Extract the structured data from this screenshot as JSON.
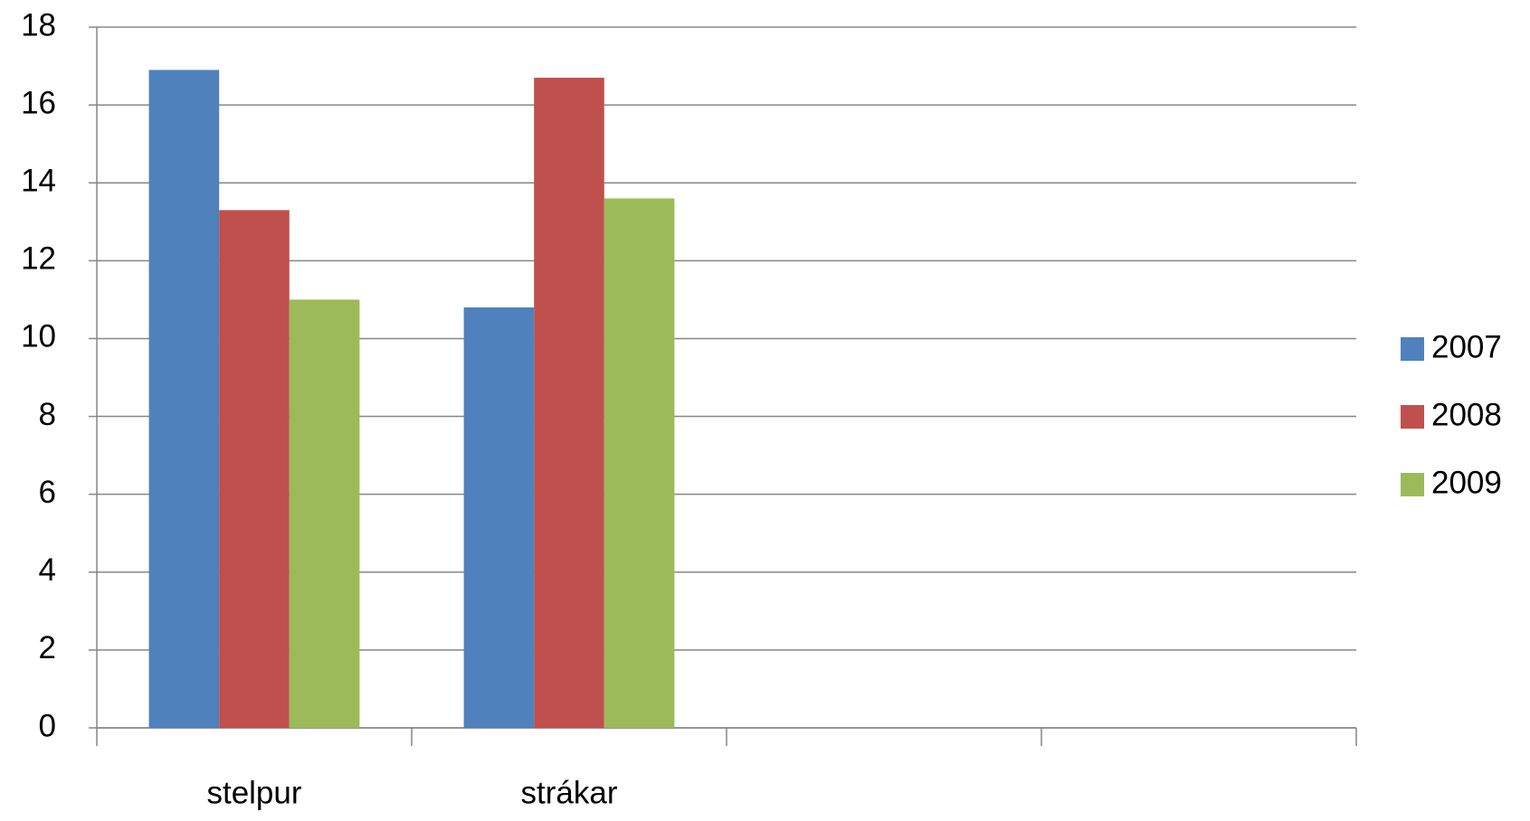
{
  "chart_data": {
    "type": "bar",
    "categories": [
      "stelpur",
      "strákar",
      null,
      null
    ],
    "series": [
      {
        "name": "2007",
        "color": "#4f81bd",
        "values": [
          16.9,
          10.8,
          null,
          null
        ]
      },
      {
        "name": "2008",
        "color": "#c0504d",
        "values": [
          13.3,
          16.7,
          null,
          null
        ]
      },
      {
        "name": "2009",
        "color": "#9bbb59",
        "values": [
          11.0,
          13.6,
          null,
          null
        ]
      }
    ],
    "ylim": [
      0,
      18
    ],
    "yticks": [
      0,
      2,
      4,
      6,
      8,
      10,
      12,
      14,
      16,
      18
    ],
    "grid": true,
    "legend": "right"
  }
}
